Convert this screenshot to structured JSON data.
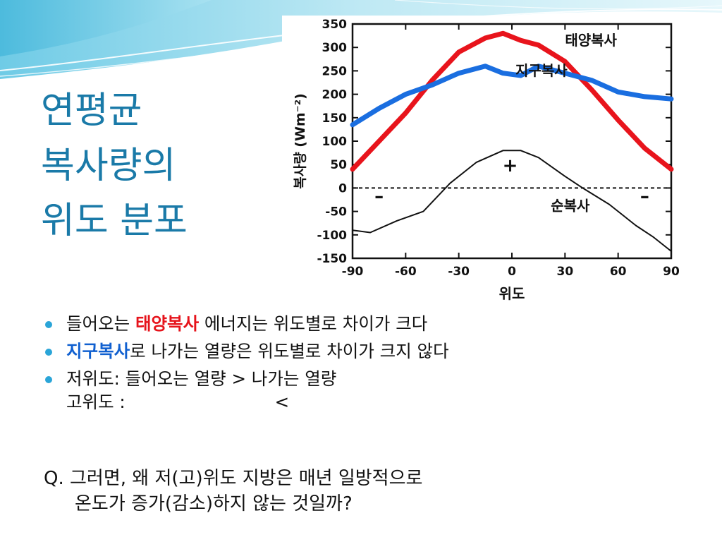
{
  "title": {
    "lines": [
      "연평균",
      "복사량의",
      "위도 분포"
    ]
  },
  "chart_data": {
    "type": "line",
    "xlabel": "위도",
    "ylabel": "복사량 (Wm⁻²)",
    "xlim": [
      -90,
      90
    ],
    "ylim": [
      -150,
      350
    ],
    "x_ticks": [
      -90,
      -60,
      -30,
      0,
      30,
      60,
      90
    ],
    "y_ticks": [
      350,
      300,
      250,
      200,
      150,
      100,
      50,
      0,
      -50,
      -100,
      -150
    ],
    "series": [
      {
        "name": "태양복사",
        "color": "#e8141c",
        "x": [
          -90,
          -75,
          -60,
          -45,
          -30,
          -15,
          -5,
          5,
          15,
          30,
          45,
          60,
          75,
          90
        ],
        "y": [
          40,
          100,
          160,
          230,
          290,
          320,
          330,
          315,
          305,
          270,
          210,
          145,
          85,
          40
        ]
      },
      {
        "name": "지구복사",
        "color": "#1a6ee0",
        "x": [
          -90,
          -75,
          -60,
          -45,
          -30,
          -15,
          -5,
          5,
          15,
          30,
          45,
          60,
          75,
          90
        ],
        "y": [
          135,
          170,
          200,
          220,
          245,
          260,
          245,
          240,
          260,
          245,
          230,
          205,
          195,
          190
        ]
      },
      {
        "name": "순복사",
        "color": "#111111",
        "x": [
          -90,
          -80,
          -65,
          -50,
          -35,
          -20,
          -5,
          5,
          15,
          30,
          40,
          55,
          70,
          80,
          90
        ],
        "y": [
          -90,
          -95,
          -70,
          -50,
          10,
          55,
          80,
          80,
          65,
          25,
          0,
          -35,
          -80,
          -105,
          -135
        ]
      }
    ],
    "annotations": [
      {
        "text": "+",
        "x": -1,
        "y": 35
      },
      {
        "text": "–",
        "x": -75,
        "y": -30
      },
      {
        "text": "–",
        "x": 75,
        "y": -30
      }
    ],
    "zero_line": "dashed",
    "grid": false
  },
  "bullets": [
    {
      "before": "들어오는 ",
      "highlight": "태양복사",
      "after": " 에너지는 위도별로 차이가 크다",
      "color": "red"
    },
    {
      "before": "",
      "highlight": "지구복사",
      "after": "로 나가는 열량은 위도별로 차이가 크지 않다",
      "color": "blue"
    },
    {
      "line1": "저위도: 들어오는 열량 > 나가는 열량",
      "line2_label": "고위도 :",
      "line2_symbol": "<"
    }
  ],
  "question": {
    "line1": "Q. 그러면, 왜 저(고)위도 지방은 매년 일방적으로",
    "line2": "온도가 증가(감소)하지 않는 것일까?"
  }
}
